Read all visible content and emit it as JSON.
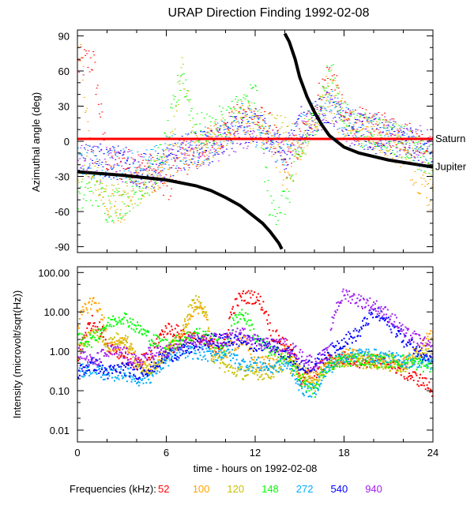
{
  "chart_data": [
    {
      "type": "scatter",
      "title": "URAP Direction Finding  1992-02-08",
      "ylabel": "Azimuthal angle (deg)",
      "xlim": [
        0,
        24
      ],
      "ylim": [
        -95,
        95
      ],
      "x_ticks": [
        "0",
        "6",
        "12",
        "18",
        "24"
      ],
      "y_ticks": [
        "-90",
        "-60",
        "-30",
        "0",
        "30",
        "60",
        "90"
      ],
      "x_hours": [
        0,
        1,
        2,
        3,
        4,
        5,
        6,
        7,
        8,
        9,
        10,
        11,
        12,
        13,
        14,
        15,
        16,
        17,
        18,
        19,
        20,
        21,
        22,
        23,
        24
      ],
      "series": [
        {
          "name": "52",
          "color": "#ff0000",
          "values": [
            65,
            70,
            -20,
            -20,
            -20,
            -25,
            -40,
            -15,
            -10,
            0,
            10,
            20,
            20,
            10,
            -20,
            0,
            30,
            60,
            20,
            15,
            10,
            10,
            5,
            0,
            -10
          ]
        },
        {
          "name": "100",
          "color": "#ffa500",
          "values": [
            90,
            -20,
            -60,
            -55,
            -30,
            -30,
            -20,
            -10,
            -10,
            0,
            10,
            20,
            10,
            0,
            -30,
            -10,
            20,
            50,
            20,
            10,
            10,
            0,
            -10,
            -30,
            -50
          ]
        },
        {
          "name": "120",
          "color": "#c8c000",
          "values": [
            -20,
            -30,
            -50,
            -50,
            -40,
            -30,
            -20,
            60,
            -10,
            0,
            10,
            20,
            20,
            10,
            10,
            0,
            20,
            30,
            15,
            10,
            5,
            5,
            0,
            -10,
            -30
          ]
        },
        {
          "name": "148",
          "color": "#00ff00",
          "values": [
            -50,
            -40,
            -55,
            -50,
            -40,
            -30,
            0,
            60,
            10,
            10,
            20,
            30,
            40,
            -60,
            -50,
            -10,
            20,
            60,
            20,
            10,
            10,
            5,
            0,
            -10,
            -20
          ]
        },
        {
          "name": "272",
          "color": "#00aaff",
          "values": [
            -15,
            -18,
            -18,
            -20,
            -20,
            -20,
            -10,
            -5,
            -5,
            0,
            10,
            20,
            10,
            0,
            -10,
            10,
            20,
            40,
            15,
            10,
            10,
            5,
            0,
            -10,
            -10
          ]
        },
        {
          "name": "540",
          "color": "#0000ff",
          "values": [
            -15,
            -15,
            -18,
            -18,
            -25,
            -25,
            -20,
            -10,
            -5,
            -5,
            5,
            10,
            15,
            0,
            -10,
            15,
            20,
            30,
            10,
            10,
            5,
            0,
            0,
            -5,
            -10
          ]
        },
        {
          "name": "940",
          "color": "#a020f0",
          "values": [
            -15,
            -18,
            -20,
            -20,
            -25,
            -25,
            -20,
            -10,
            -10,
            -5,
            0,
            5,
            10,
            0,
            -10,
            10,
            20,
            30,
            15,
            10,
            10,
            5,
            0,
            0,
            -5
          ]
        }
      ],
      "reference_lines": [
        {
          "label": "Saturn",
          "color": "#ff0000",
          "points": [
            [
              0,
              2
            ],
            [
              24,
              2
            ]
          ]
        },
        {
          "label": "Jupiter",
          "color": "#000000",
          "segments": [
            [
              [
                0,
                -26
              ],
              [
                3,
                -29
              ],
              [
                6,
                -33
              ],
              [
                8,
                -38
              ],
              [
                9,
                -42
              ],
              [
                10,
                -48
              ],
              [
                11,
                -55
              ],
              [
                12,
                -65
              ],
              [
                12.5,
                -70
              ],
              [
                13,
                -77
              ],
              [
                13.3,
                -82
              ],
              [
                13.6,
                -87
              ],
              [
                13.8,
                -92
              ]
            ],
            [
              [
                14,
                92
              ],
              [
                14.3,
                85
              ],
              [
                14.7,
                70
              ],
              [
                15,
                55
              ],
              [
                15.5,
                38
              ],
              [
                16,
                25
              ],
              [
                16.5,
                14
              ],
              [
                17,
                5
              ],
              [
                18,
                -5
              ],
              [
                19,
                -10
              ],
              [
                20,
                -13
              ],
              [
                21,
                -16
              ],
              [
                22,
                -18
              ],
              [
                23,
                -20
              ],
              [
                24,
                -22
              ]
            ]
          ]
        }
      ]
    },
    {
      "type": "scatter",
      "ylabel": "Intensity (microvolt/sqrt(Hz))",
      "xlabel": "time - hours on 1992-02-08",
      "yscale": "log",
      "xlim": [
        0,
        24
      ],
      "ylim": [
        0.005,
        140
      ],
      "x_ticks": [
        "0",
        "6",
        "12",
        "18",
        "24"
      ],
      "y_ticks": [
        "0.01",
        "0.10",
        "1.00",
        "10.00",
        "100.00"
      ],
      "x_hours": [
        0,
        1,
        2,
        3,
        4,
        5,
        6,
        7,
        8,
        9,
        10,
        11,
        12,
        13,
        14,
        15,
        16,
        17,
        18,
        19,
        20,
        21,
        22,
        23,
        24
      ],
      "series": [
        {
          "name": "52",
          "color": "#ff0000",
          "values": [
            0.5,
            6,
            1.5,
            0.8,
            0.5,
            0.8,
            4,
            3,
            2,
            1.5,
            1.5,
            25,
            25,
            3,
            1.5,
            0.2,
            0.3,
            0.6,
            0.7,
            0.6,
            0.6,
            0.5,
            0.3,
            0.2,
            0.1
          ]
        },
        {
          "name": "100",
          "color": "#ffa500",
          "values": [
            5,
            20,
            1,
            2,
            0.5,
            0.3,
            1,
            2,
            15,
            1,
            1,
            2,
            0.5,
            0.6,
            1,
            0.2,
            0.15,
            0.5,
            0.8,
            0.8,
            0.6,
            0.6,
            0.5,
            1,
            3
          ]
        },
        {
          "name": "120",
          "color": "#c8c000",
          "values": [
            1,
            3,
            1.5,
            2.5,
            0.4,
            0.4,
            1,
            2,
            20,
            0.8,
            0.4,
            0.3,
            0.3,
            0.3,
            0.5,
            0.3,
            0.2,
            0.5,
            0.6,
            0.6,
            0.5,
            0.5,
            0.4,
            1,
            1
          ]
        },
        {
          "name": "148",
          "color": "#00ff00",
          "values": [
            2,
            2,
            5,
            8,
            4,
            2,
            1.5,
            2,
            3,
            2,
            1,
            10,
            2,
            1,
            0.7,
            0.2,
            0.08,
            0.5,
            0.6,
            0.7,
            0.6,
            0.6,
            0.6,
            0.5,
            0.4
          ]
        },
        {
          "name": "272",
          "color": "#00aaff",
          "values": [
            0.3,
            0.4,
            0.25,
            0.3,
            0.2,
            0.25,
            0.6,
            1,
            1,
            0.8,
            1,
            0.5,
            0.5,
            0.4,
            0.5,
            0.12,
            0.1,
            0.4,
            0.8,
            0.9,
            0.8,
            0.7,
            0.6,
            0.6,
            0.5
          ]
        },
        {
          "name": "540",
          "color": "#0000ff",
          "values": [
            0.3,
            0.5,
            0.3,
            0.4,
            0.3,
            0.4,
            0.8,
            1,
            1.5,
            2,
            2,
            2,
            1.5,
            1.5,
            1,
            0.4,
            0.5,
            1,
            2,
            3,
            10,
            5,
            2,
            1,
            0.8
          ]
        },
        {
          "name": "940",
          "color": "#a020f0",
          "values": [
            1,
            0.5,
            1,
            1,
            0.5,
            1,
            1,
            1.5,
            2,
            2,
            2,
            3,
            2,
            1.5,
            1.5,
            0.8,
            0.5,
            1,
            30,
            20,
            15,
            8,
            3,
            2,
            1
          ]
        }
      ]
    }
  ],
  "legend": {
    "label": "Frequencies (kHz):",
    "placement": "bottom"
  }
}
